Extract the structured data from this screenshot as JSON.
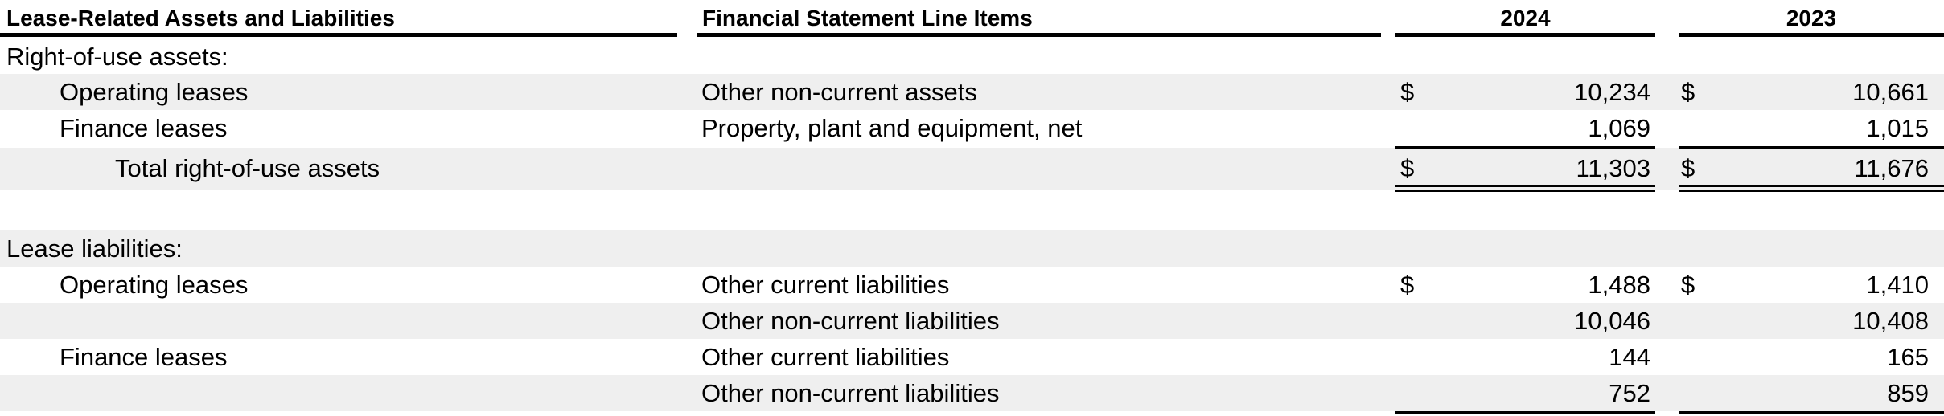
{
  "header": {
    "col1": "Lease-Related Assets and Liabilities",
    "col2": "Financial Statement Line Items",
    "year_2024": "2024",
    "year_2023": "2023"
  },
  "rows": [
    {
      "label": "Right-of-use assets:",
      "line_item": "",
      "sym_2024": "",
      "val_2024": "",
      "sym_2023": "",
      "val_2023": ""
    },
    {
      "label": "Operating leases",
      "line_item": "Other non-current assets",
      "sym_2024": "$",
      "val_2024": "10,234",
      "sym_2023": "$",
      "val_2023": "10,661"
    },
    {
      "label": "Finance leases",
      "line_item": "Property, plant and equipment, net",
      "sym_2024": "",
      "val_2024": "1,069",
      "sym_2023": "",
      "val_2023": "1,015"
    },
    {
      "label": "Total right-of-use assets",
      "line_item": "",
      "sym_2024": "$",
      "val_2024": "11,303",
      "sym_2023": "$",
      "val_2023": "11,676"
    },
    {
      "label": "Lease liabilities:",
      "line_item": "",
      "sym_2024": "",
      "val_2024": "",
      "sym_2023": "",
      "val_2023": ""
    },
    {
      "label": "Operating leases",
      "line_item": "Other current liabilities",
      "sym_2024": "$",
      "val_2024": "1,488",
      "sym_2023": "$",
      "val_2023": "1,410"
    },
    {
      "label": "",
      "line_item": "Other non-current liabilities",
      "sym_2024": "",
      "val_2024": "10,046",
      "sym_2023": "",
      "val_2023": "10,408"
    },
    {
      "label": "Finance leases",
      "line_item": "Other current liabilities",
      "sym_2024": "",
      "val_2024": "144",
      "sym_2023": "",
      "val_2023": "165"
    },
    {
      "label": "",
      "line_item": "Other non-current liabilities",
      "sym_2024": "",
      "val_2024": "752",
      "sym_2023": "",
      "val_2023": "859"
    }
  ]
}
